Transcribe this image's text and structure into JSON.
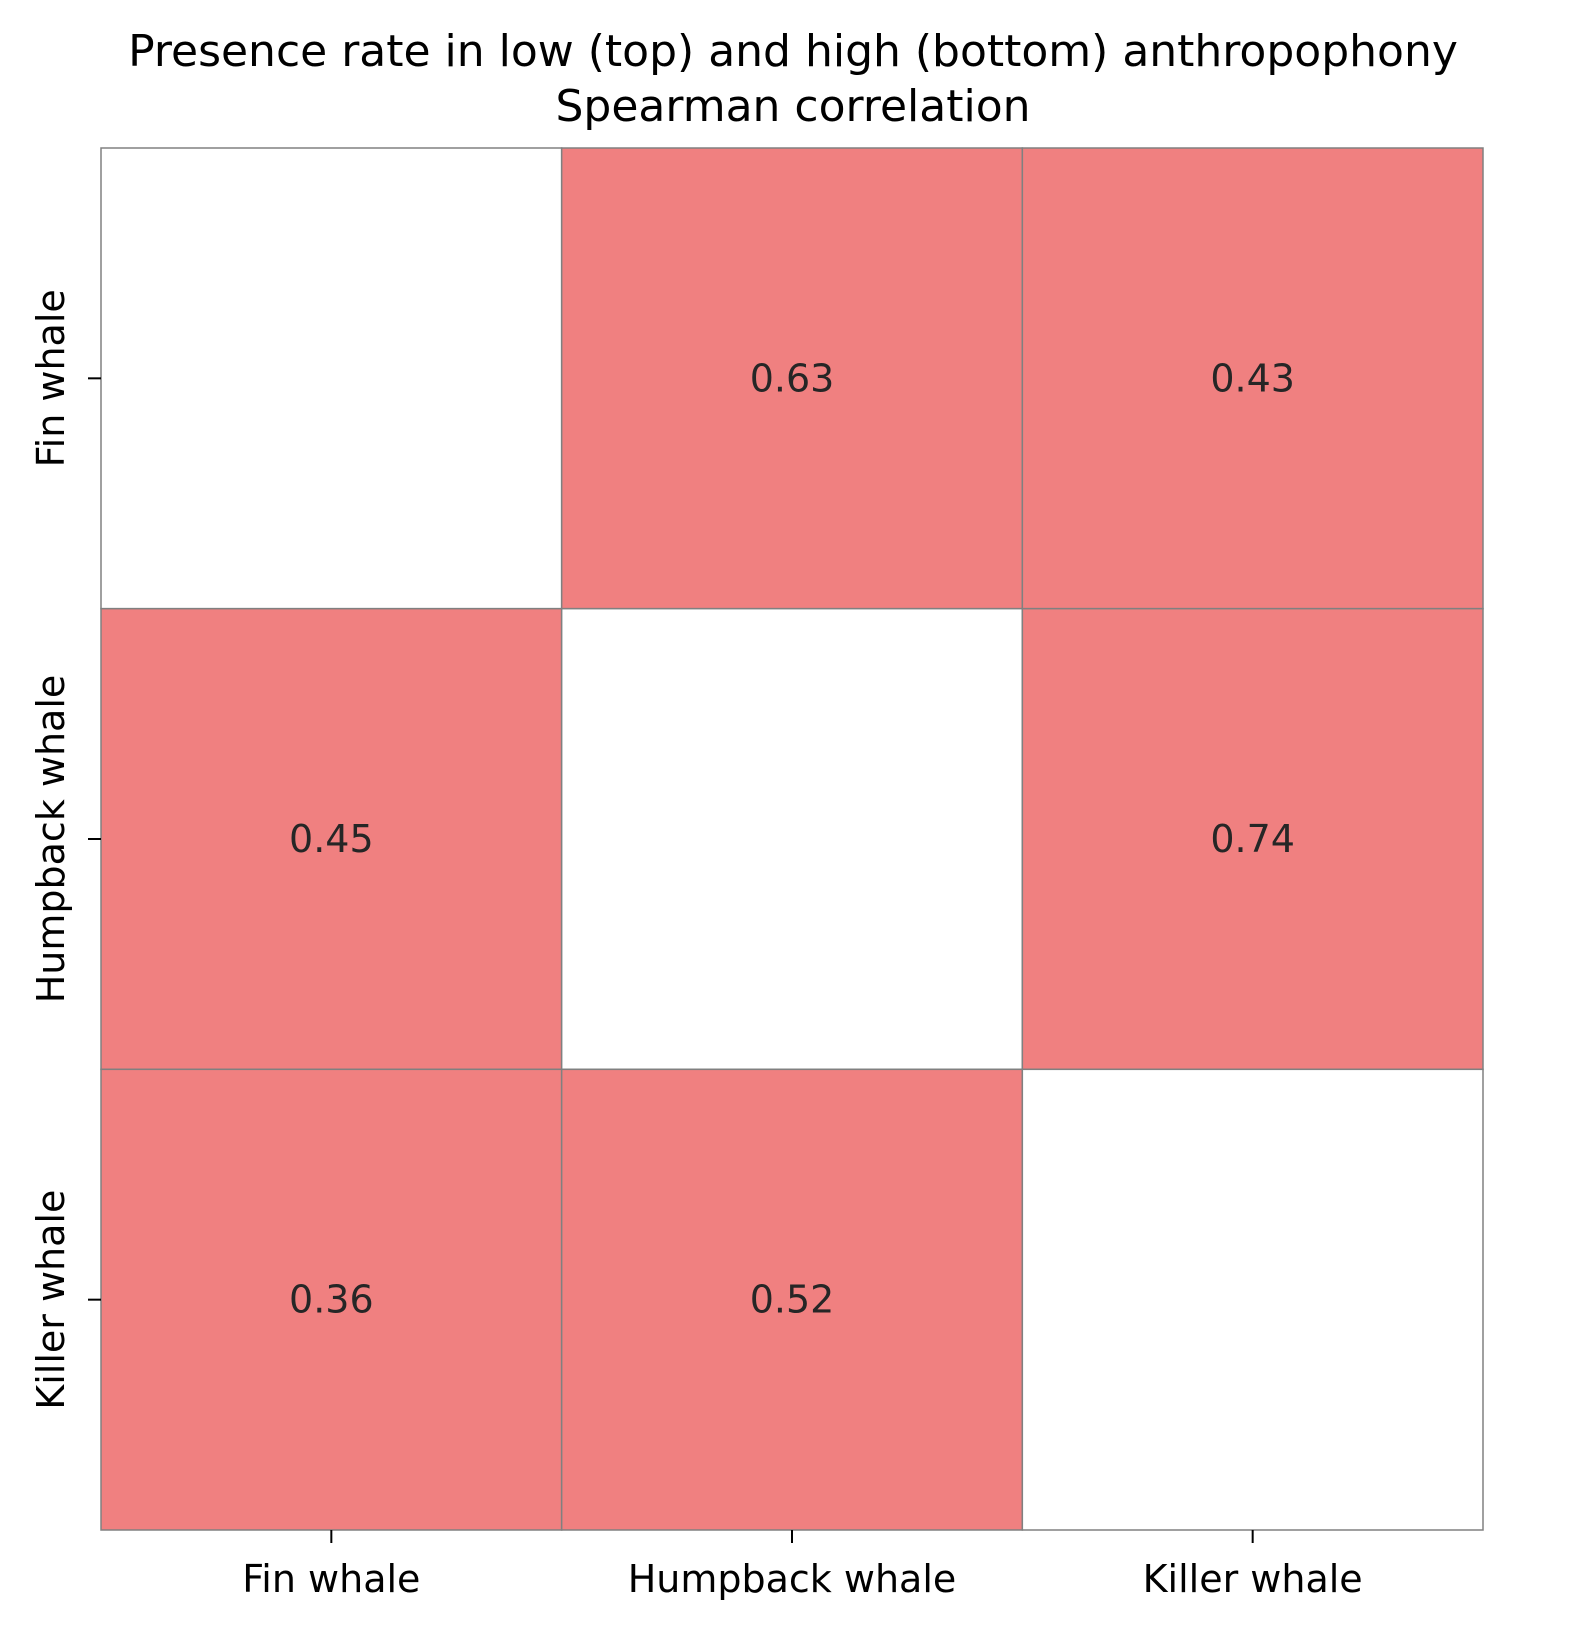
{
  "chart_data": {
    "type": "heatmap",
    "title": [
      "Presence rate in low (top) and high (bottom) anthropophony",
      "Spearman correlation"
    ],
    "xlabel": "",
    "ylabel": "",
    "x_categories": [
      "Fin whale",
      "Humpback whale",
      "Killer whale"
    ],
    "y_categories": [
      "Fin whale",
      "Humpback whale",
      "Killer whale"
    ],
    "values": [
      [
        null,
        0.63,
        0.43
      ],
      [
        0.45,
        null,
        0.74
      ],
      [
        0.36,
        0.52,
        null
      ]
    ],
    "cell_labels": [
      [
        "",
        "0.63",
        "0.43"
      ],
      [
        "0.45",
        "",
        "0.74"
      ],
      [
        "0.36",
        "0.52",
        ""
      ]
    ],
    "grid": false,
    "legend": "none",
    "colors": {
      "filled_cell": "#F08080",
      "empty_cell": "#FFFFFF",
      "cell_border": "#808080",
      "cell_text": "#262626",
      "axis_text": "#000000"
    }
  }
}
